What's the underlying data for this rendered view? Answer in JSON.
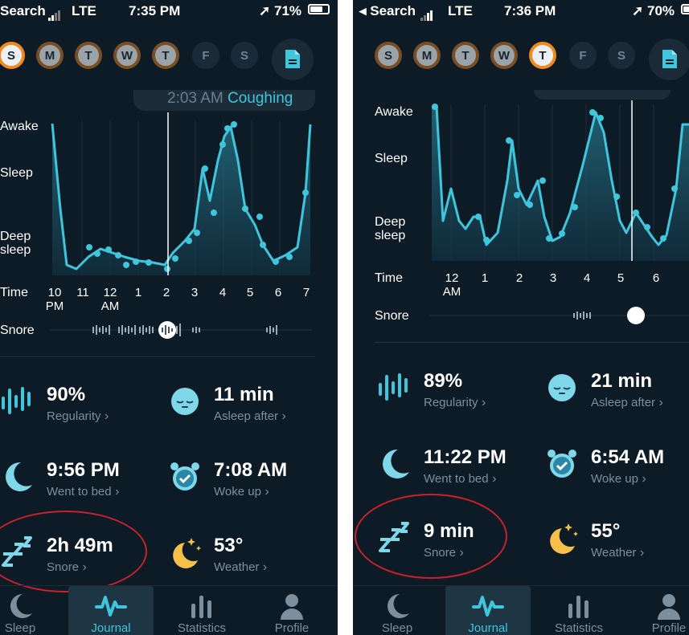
{
  "colors": {
    "accent": "#3fc6dc",
    "background": "#0d1b27",
    "highlight_circle": "#c8212a",
    "day_ring": "#f08a1f"
  },
  "left": {
    "status": {
      "back_label": "Search",
      "carrier": "LTE",
      "time": "7:35 PM",
      "battery": "71%",
      "battery_level": 0.71
    },
    "days": [
      {
        "letter": "S",
        "state": "current"
      },
      {
        "letter": "M",
        "state": "filled"
      },
      {
        "letter": "T",
        "state": "filled"
      },
      {
        "letter": "W",
        "state": "filled"
      },
      {
        "letter": "T",
        "state": "filled"
      },
      {
        "letter": "F",
        "state": "empty"
      },
      {
        "letter": "S",
        "state": "empty"
      }
    ],
    "event_pill": {
      "time": "2:03 AM",
      "event": "Coughing"
    },
    "y_labels": {
      "awake": "Awake",
      "sleep": "Sleep",
      "deep": "Deep sleep"
    },
    "time_label": "Time",
    "time_ticks": [
      "10 PM",
      "11",
      "12 AM",
      "1",
      "2",
      "3",
      "4",
      "5",
      "6",
      "7"
    ],
    "snore_label": "Snore",
    "stats": {
      "regularity": {
        "value": "90%",
        "label": "Regularity"
      },
      "asleep_after": {
        "value": "11 min",
        "label": "Asleep after"
      },
      "went_to_bed": {
        "value": "9:56 PM",
        "label": "Went to bed"
      },
      "woke_up": {
        "value": "7:08 AM",
        "label": "Woke up"
      },
      "snore": {
        "value": "2h 49m",
        "label": "Snore"
      },
      "weather": {
        "value": "53°",
        "label": "Weather"
      }
    },
    "tabs": [
      "Sleep",
      "Journal",
      "Statistics",
      "Profile"
    ]
  },
  "right": {
    "status": {
      "back_label": "Search",
      "carrier": "LTE",
      "time": "7:36 PM",
      "battery": "70%",
      "battery_level": 0.7
    },
    "days": [
      {
        "letter": "S",
        "state": "filled"
      },
      {
        "letter": "M",
        "state": "filled"
      },
      {
        "letter": "T",
        "state": "filled"
      },
      {
        "letter": "W",
        "state": "filled"
      },
      {
        "letter": "T",
        "state": "current"
      },
      {
        "letter": "F",
        "state": "empty"
      },
      {
        "letter": "S",
        "state": "empty"
      }
    ],
    "y_labels": {
      "awake": "Awake",
      "sleep": "Sleep",
      "deep": "Deep sleep"
    },
    "time_label": "Time",
    "time_ticks": [
      "12 AM",
      "1",
      "2",
      "3",
      "4",
      "5",
      "6"
    ],
    "snore_label": "Snore",
    "stats": {
      "regularity": {
        "value": "89%",
        "label": "Regularity"
      },
      "asleep_after": {
        "value": "21 min",
        "label": "Asleep after"
      },
      "went_to_bed": {
        "value": "11:22 PM",
        "label": "Went to bed"
      },
      "woke_up": {
        "value": "6:54 AM",
        "label": "Woke up"
      },
      "snore": {
        "value": "9 min",
        "label": "Snore"
      },
      "weather": {
        "value": "55°",
        "label": "Weather"
      }
    },
    "tabs": [
      "Sleep",
      "Journal",
      "Statistics",
      "Profile"
    ]
  }
}
